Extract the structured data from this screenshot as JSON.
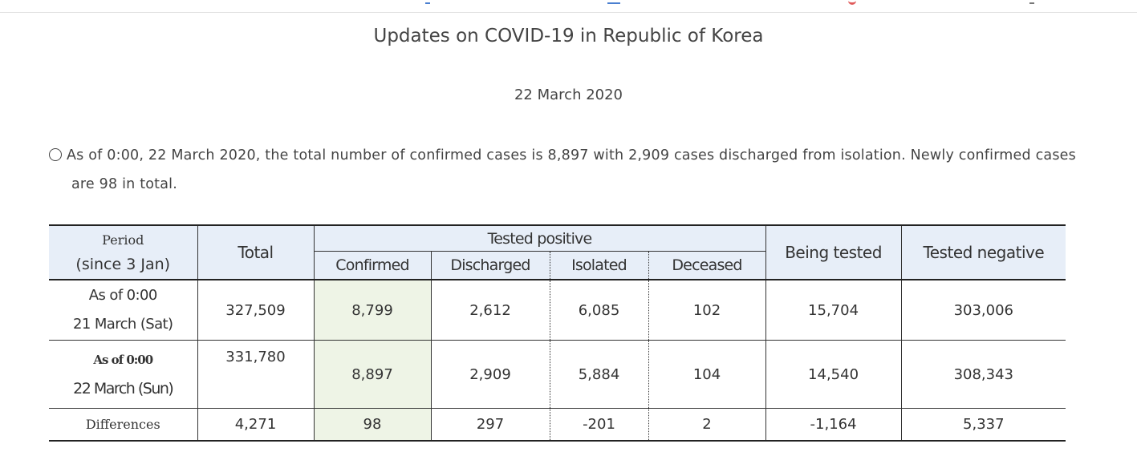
{
  "page": {
    "title": "Updates on COVID-19 in Republic of Korea",
    "date": "22 March 2020",
    "summary_line1": "As of 0:00, 22 March 2020, the total number of confirmed cases is 8,897 with 2,909 cases discharged from isolation. Newly confirmed cases",
    "summary_line2": "are 98 in total."
  },
  "table": {
    "headers": {
      "period": "Period",
      "period_sub": "(since 3 Jan)",
      "total": "Total",
      "tested_positive": "Tested positive",
      "confirmed": "Confirmed",
      "discharged": "Discharged",
      "isolated": "Isolated",
      "deceased": "Deceased",
      "being_tested": "Being tested",
      "tested_negative": "Tested negative"
    },
    "rows": [
      {
        "period_line1": "As of 0:00",
        "period_line2": "21 March (Sat)",
        "total": "327,509",
        "confirmed": "8,799",
        "discharged": "2,612",
        "isolated": "6,085",
        "deceased": "102",
        "being_tested": "15,704",
        "tested_negative": "303,006"
      },
      {
        "period_line1": "As of 0:00",
        "period_line2": "22 March (Sun)",
        "total": "331,780",
        "confirmed": "8,897",
        "discharged": "2,909",
        "isolated": "5,884",
        "deceased": "104",
        "being_tested": "14,540",
        "tested_negative": "308,343"
      },
      {
        "period_line1": "Differences",
        "total": "4,271",
        "confirmed": "98",
        "discharged": "297",
        "isolated": "-201",
        "deceased": "2",
        "being_tested": "-1,164",
        "tested_negative": "5,337"
      }
    ]
  },
  "colors": {
    "header_bg": "#e7eef8",
    "confirmed_bg": "#eef4e6",
    "text": "#333333"
  }
}
